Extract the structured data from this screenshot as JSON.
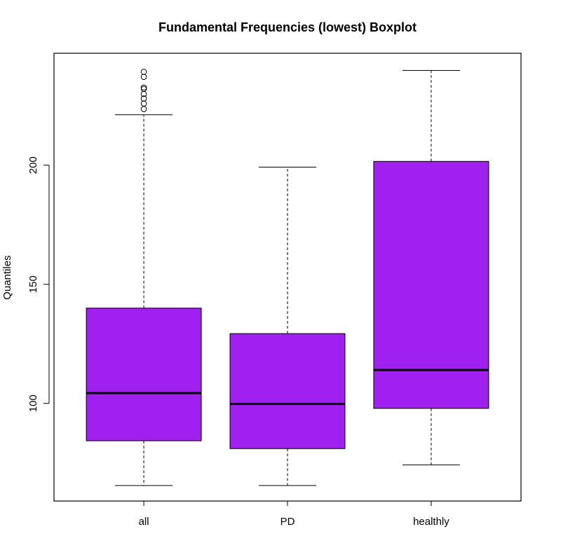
{
  "chart_data": {
    "type": "boxplot",
    "title": "Fundamental Frequencies (lowest) Boxplot",
    "xlabel": "",
    "ylabel": "Quantiles",
    "ylim": [
      59,
      247
    ],
    "yticks": [
      100,
      150,
      200
    ],
    "grid": false,
    "fill_color": "#A020F0",
    "categories": [
      "all",
      "PD",
      "healthly"
    ],
    "boxes": [
      {
        "category": "all",
        "whisker_low": 65.5,
        "q1": 84.3,
        "median": 104.3,
        "q3": 140.0,
        "whisker_high": 221.2,
        "outliers": [
          223.6,
          225.9,
          228.0,
          229.9,
          232.0,
          232.6,
          237.1,
          239.2
        ]
      },
      {
        "category": "PD",
        "whisker_low": 65.5,
        "q1": 81.0,
        "median": 99.8,
        "q3": 129.3,
        "whisker_high": 199.2,
        "outliers": []
      },
      {
        "category": "healthly",
        "whisker_low": 74.2,
        "q1": 97.9,
        "median": 114.0,
        "q3": 201.6,
        "whisker_high": 239.8,
        "outliers": []
      }
    ]
  }
}
